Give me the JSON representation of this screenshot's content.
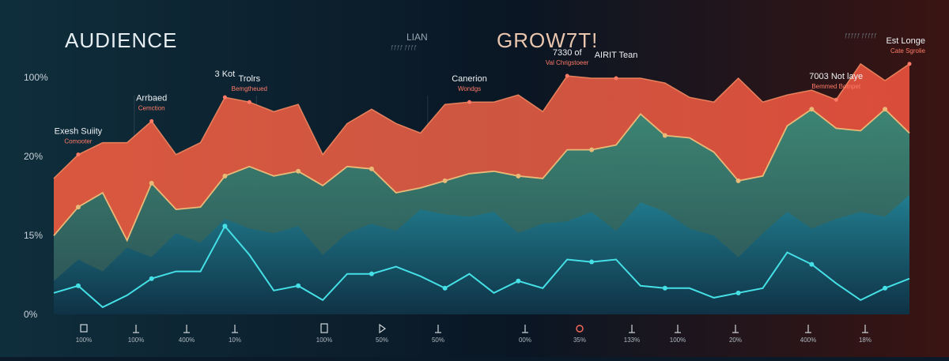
{
  "header": {
    "title_left": "AUDIENCE",
    "title_right": "GROW7T!",
    "mid_label": "LIAN",
    "mid_sublabel": "ƒƒƒƒ ƒƒƒƒ",
    "corner_label": "ƒƒƒƒƒ ƒƒƒƒƒ"
  },
  "colors": {
    "background": "#0b1a28",
    "orange": "#e8684a",
    "green": "#2f8a78",
    "teal": "#1f7f93",
    "line": "#45e0e6",
    "gold": "#e9b978",
    "annotation_red": "#ff7b68"
  },
  "chart_data": {
    "type": "area",
    "title": "",
    "xlabel": "",
    "ylabel": "",
    "y_ticks": [
      "100%",
      "20%",
      "15%",
      "0%"
    ],
    "x": [
      0,
      1,
      2,
      3,
      4,
      5,
      6,
      7,
      8,
      9,
      10,
      11,
      12,
      13,
      14,
      15,
      16,
      17,
      18,
      19,
      20,
      21,
      22,
      23,
      24,
      25,
      26,
      27,
      28,
      29,
      30,
      31,
      32,
      33,
      34,
      35
    ],
    "x_tick_labels": [
      "100%",
      "100%",
      "400%",
      "10%",
      "100%",
      "50%",
      "50%",
      "00%",
      "35%",
      "133%",
      "100%",
      "20%",
      "400%",
      "18%"
    ],
    "x_tick_icons": [
      "box-icon",
      "down-arrow-icon",
      "down-arrow-icon",
      "down-arrow-icon",
      "doc-icon",
      "play-icon",
      "down-arrow-icon",
      "down-arrow-icon",
      "circle-icon",
      "down-arrow-icon",
      "down-arrow-icon",
      "down-arrow-icon",
      "down-arrow-icon",
      "down-arrow-icon"
    ],
    "ylim": [
      0,
      100
    ],
    "grid": "vertical",
    "series": [
      {
        "values": [
          57,
          67,
          72,
          72,
          81,
          67,
          72,
          91,
          89,
          85,
          88,
          67,
          80,
          86,
          80,
          76,
          88,
          89,
          89,
          92,
          85,
          100,
          99,
          99,
          99,
          97,
          91,
          89,
          99,
          89,
          92,
          94,
          90,
          105,
          98,
          105
        ]
      },
      {
        "values": [
          33,
          45,
          51,
          31,
          55,
          44,
          45,
          58,
          62,
          58,
          60,
          54,
          62,
          61,
          51,
          53,
          56,
          59,
          60,
          58,
          57,
          69,
          69,
          71,
          84,
          75,
          74,
          68,
          56,
          58,
          79,
          86,
          78,
          77,
          86,
          76
        ]
      },
      {
        "values": [
          14,
          23,
          18,
          28,
          24,
          34,
          30,
          40,
          36,
          34,
          37,
          25,
          34,
          38,
          35,
          44,
          42,
          41,
          43,
          34,
          38,
          39,
          43,
          35,
          47,
          43,
          36,
          33,
          24,
          34,
          43,
          36,
          40,
          43,
          41,
          50
        ]
      },
      {
        "values": [
          9,
          12,
          3,
          8,
          15,
          18,
          18,
          37,
          25,
          10,
          12,
          6,
          17,
          17,
          20,
          16,
          11,
          17,
          9,
          14,
          11,
          23,
          22,
          23,
          12,
          11,
          11,
          7,
          9,
          11,
          26,
          21,
          13,
          6,
          11,
          15
        ]
      }
    ],
    "annotations": [
      {
        "index": 1,
        "series": 0,
        "label": "Exesh Suiity",
        "sublabel": "Comooter"
      },
      {
        "index": 4,
        "series": 0,
        "label": "Arrbaed",
        "sublabel": "Cemction"
      },
      {
        "index": 7,
        "series": 0,
        "label": "3 Kot",
        "sublabel": ""
      },
      {
        "index": 8,
        "series": 0,
        "label": "Trolrs",
        "sublabel": "Bemgtheued"
      },
      {
        "index": 17,
        "series": 0,
        "label": "Canerion",
        "sublabel": "Wondgs"
      },
      {
        "index": 21,
        "series": 0,
        "label": "7330 of",
        "sublabel": "Val Chrigstoeer"
      },
      {
        "index": 23,
        "series": 0,
        "label": "AIRIT Tean",
        "sublabel": ""
      },
      {
        "index": 32,
        "series": 0,
        "label": "7003 Not laye",
        "sublabel": "Bemmed Bompet"
      },
      {
        "index": 35,
        "series": 0,
        "label": "Est Longe",
        "sublabel": "Cate Sgrolie"
      }
    ]
  }
}
